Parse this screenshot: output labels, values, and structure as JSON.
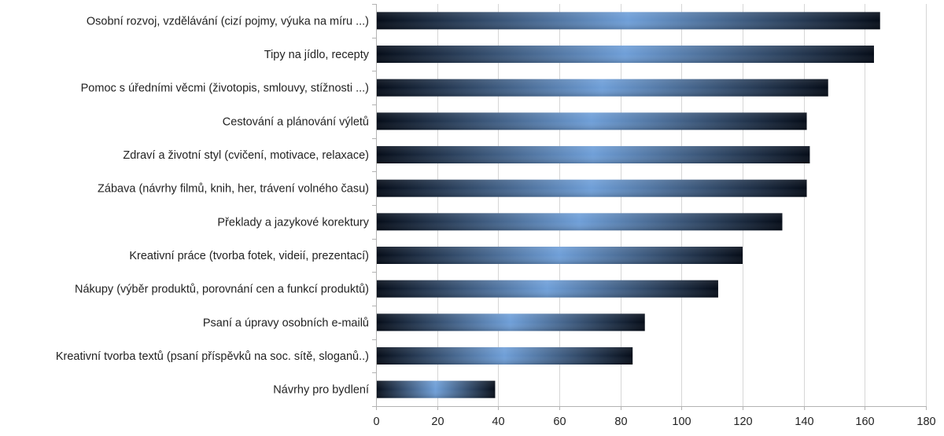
{
  "chart_data": {
    "type": "bar",
    "orientation": "horizontal",
    "categories": [
      "Osobní rozvoj, vzdělávání (cizí pojmy, výuka na míru ...)",
      "Tipy na jídlo, recepty",
      "Pomoc s úředními věcmi (životopis, smlouvy, stížnosti ...)",
      "Cestování a plánování výletů",
      "Zdraví a životní styl (cvičení, motivace, relaxace)",
      "Zábava (návrhy filmů, knih, her, trávení volného času)",
      "Překlady a jazykové korektury",
      "Kreativní práce (tvorba fotek, videií, prezentací)",
      "Nákupy (výběr produktů, porovnání cen a funkcí produktů)",
      "Psaní a úpravy osobních e-mailů",
      "Kreativní tvorba textů (psaní příspěvků na soc. sítě, sloganů..)",
      "Návrhy pro bydlení"
    ],
    "values": [
      165,
      163,
      148,
      141,
      142,
      141,
      133,
      120,
      112,
      88,
      84,
      39
    ],
    "xlim": [
      0,
      180
    ],
    "xticks": [
      0,
      20,
      40,
      60,
      80,
      100,
      120,
      140,
      160,
      180
    ],
    "title": "",
    "xlabel": "",
    "ylabel": "",
    "grid": true,
    "legend": "none",
    "colors": {
      "bar_dark": "#050c18",
      "bar_light": "#6f9fd8",
      "grid": "#d6d6d6",
      "axis": "#b3b3b3",
      "text": "#222222"
    }
  }
}
